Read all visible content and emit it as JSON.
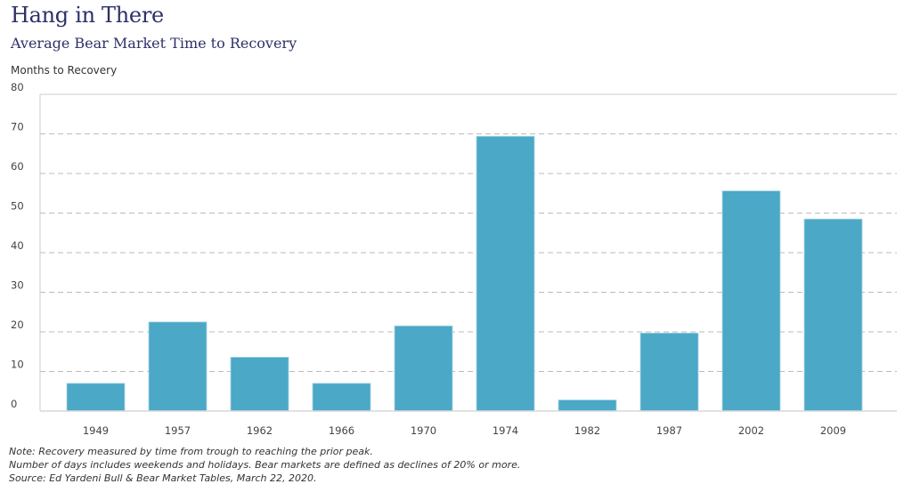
{
  "header": {
    "title": "Hang in There",
    "subtitle": "Average Bear Market Time to Recovery"
  },
  "notes": [
    "Note: Recovery measured by time from trough to reaching the prior peak.",
    "Number of days includes weekends and holidays. Bear markets are defined as declines of 20% or more.",
    "Source: Ed Yardeni Bull & Bear Market Tables, March 22, 2020."
  ],
  "colors": {
    "bar": "#4ba8c6",
    "title": "#2e3068",
    "grid": "#bbbbbb"
  },
  "chart_data": {
    "type": "bar",
    "title": "Hang in There",
    "subtitle": "Average Bear Market Time to Recovery",
    "xlabel": "",
    "ylabel": "Months to Recovery",
    "categories": [
      "1949",
      "1957",
      "1962",
      "1966",
      "1970",
      "1974",
      "1982",
      "1987",
      "2002",
      "2009"
    ],
    "values": [
      7,
      22.5,
      13.6,
      7,
      21.5,
      69.4,
      2.8,
      19.7,
      55.6,
      48.5
    ],
    "ylim": [
      0,
      80
    ],
    "yticks": [
      0,
      10,
      20,
      30,
      40,
      50,
      60,
      70,
      80
    ],
    "grid": true,
    "grid_style": "dashed",
    "legend": "none"
  }
}
